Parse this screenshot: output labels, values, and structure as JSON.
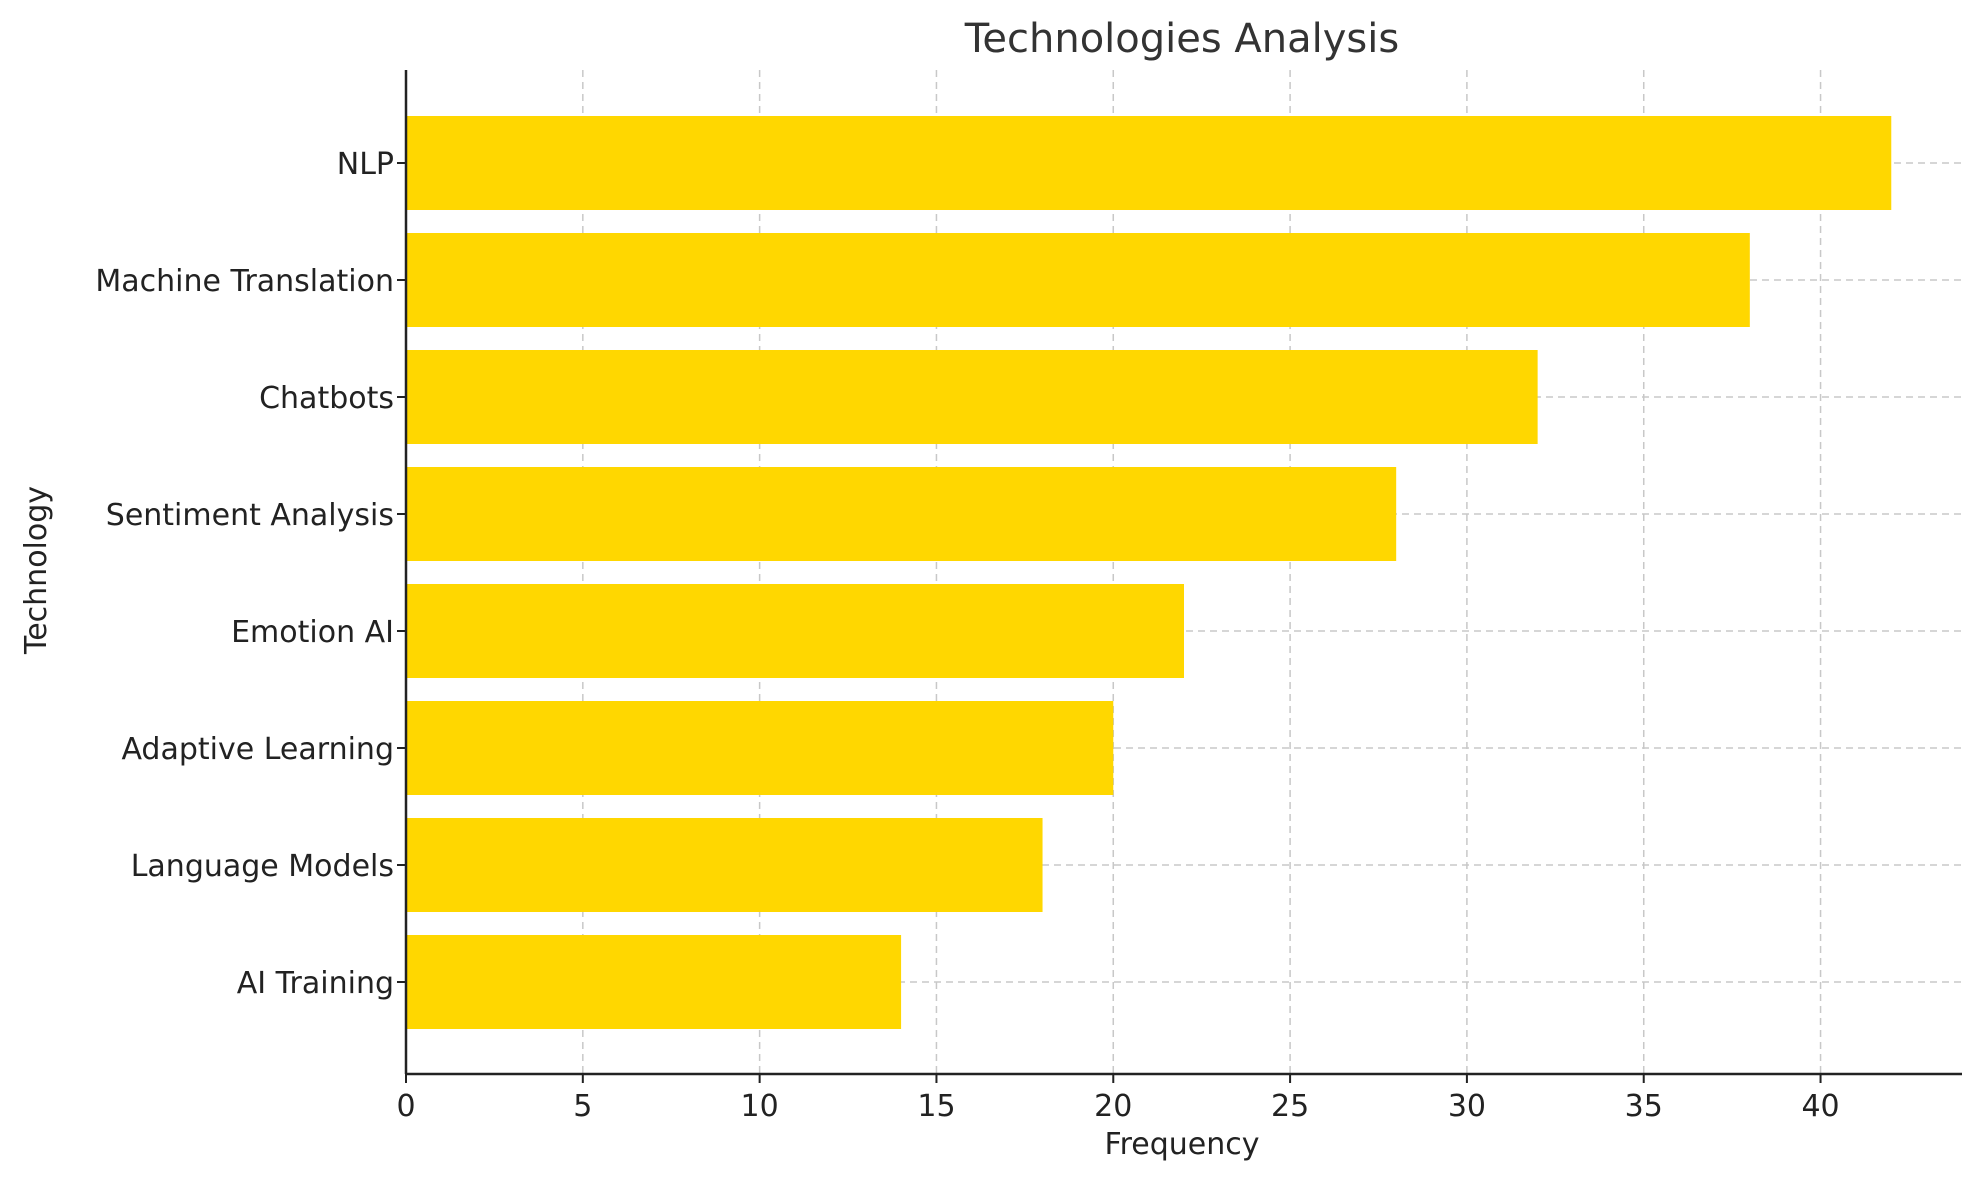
{
  "chart_data": {
    "type": "bar",
    "orientation": "horizontal",
    "title": "Technologies Analysis",
    "xlabel": "Frequency",
    "ylabel": "Technology",
    "categories": [
      "NLP",
      "Machine Translation",
      "Chatbots",
      "Sentiment Analysis",
      "Emotion AI",
      "Adaptive Learning",
      "Language Models",
      "AI Training"
    ],
    "values": [
      42,
      38,
      32,
      28,
      22,
      20,
      18,
      14
    ],
    "xlim": [
      0,
      44
    ],
    "xticks": [
      0,
      5,
      10,
      15,
      20,
      25,
      30,
      35,
      40
    ],
    "grid": true,
    "bar_color": "#FFD700"
  }
}
